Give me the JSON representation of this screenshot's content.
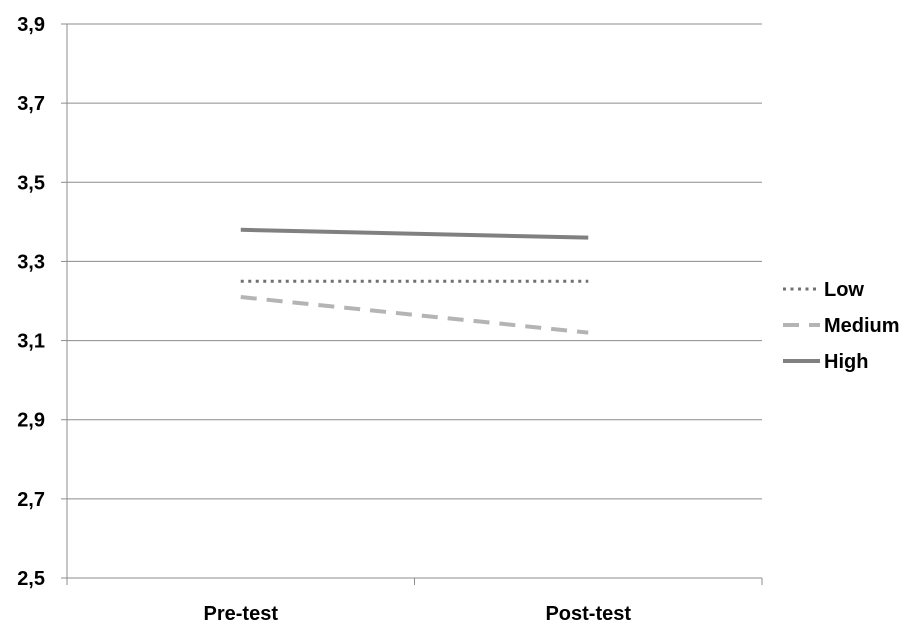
{
  "chart_data": {
    "type": "line",
    "categories": [
      "Pre-test",
      "Post-test"
    ],
    "series": [
      {
        "name": "Low",
        "values": [
          3.25,
          3.25
        ],
        "style": "dotted",
        "color": "#707070"
      },
      {
        "name": "Medium",
        "values": [
          3.21,
          3.12
        ],
        "style": "dashed",
        "color": "#b4b4b4"
      },
      {
        "name": "High",
        "values": [
          3.38,
          3.36
        ],
        "style": "solid",
        "color": "#808080"
      }
    ],
    "ylim": [
      2.5,
      3.9
    ],
    "yticks": [
      "3,9",
      "3,7",
      "3,5",
      "3,3",
      "3,1",
      "2,9",
      "2,7",
      "2,5"
    ],
    "ytick_values": [
      3.9,
      3.7,
      3.5,
      3.3,
      3.1,
      2.9,
      2.7,
      2.5
    ],
    "grid": true,
    "legend": "right",
    "title": "",
    "xlabel": "",
    "ylabel": ""
  }
}
